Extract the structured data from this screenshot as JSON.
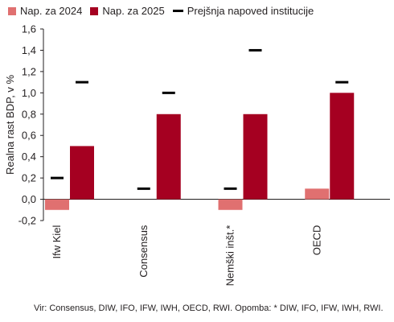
{
  "chart_data": {
    "type": "bar",
    "categories": [
      "Ifw Kiel",
      "Consensus",
      "Nemški inšt.*",
      "OECD"
    ],
    "series": [
      {
        "name": "Nap. za 2024",
        "values": [
          -0.1,
          0.0,
          -0.1,
          0.1
        ],
        "color": "#e07070"
      },
      {
        "name": "Nap. za 2025",
        "values": [
          0.5,
          0.8,
          0.8,
          1.0
        ],
        "color": "#a50021"
      }
    ],
    "markers": {
      "name": "Prejšnja napoved institucije",
      "color": "#000000",
      "values_2024": [
        0.2,
        0.1,
        0.1,
        null
      ],
      "values_2025": [
        1.1,
        1.0,
        1.4,
        1.1
      ]
    },
    "ylabel": "Realna rast BDP, v %",
    "ylim": [
      -0.2,
      1.6
    ],
    "yticks": [
      -0.2,
      0.0,
      0.2,
      0.4,
      0.6,
      0.8,
      1.0,
      1.2,
      1.4,
      1.6
    ],
    "ytick_labels": [
      "-0,2",
      "0,0",
      "0,2",
      "0,4",
      "0,6",
      "0,8",
      "1,0",
      "1,2",
      "1,4",
      "1,6"
    ],
    "grid": false,
    "legend_position": "top"
  },
  "legend": {
    "s2024": "Nap. za 2024",
    "s2025": "Nap. za 2025",
    "prev": "Prejšnja napoved institucije"
  },
  "source_note": "Vir: Consensus, DIW, IFO, IFW, IWH, OECD, RWI. Opomba: * DIW, IFO, IFW, IWH, RWI."
}
